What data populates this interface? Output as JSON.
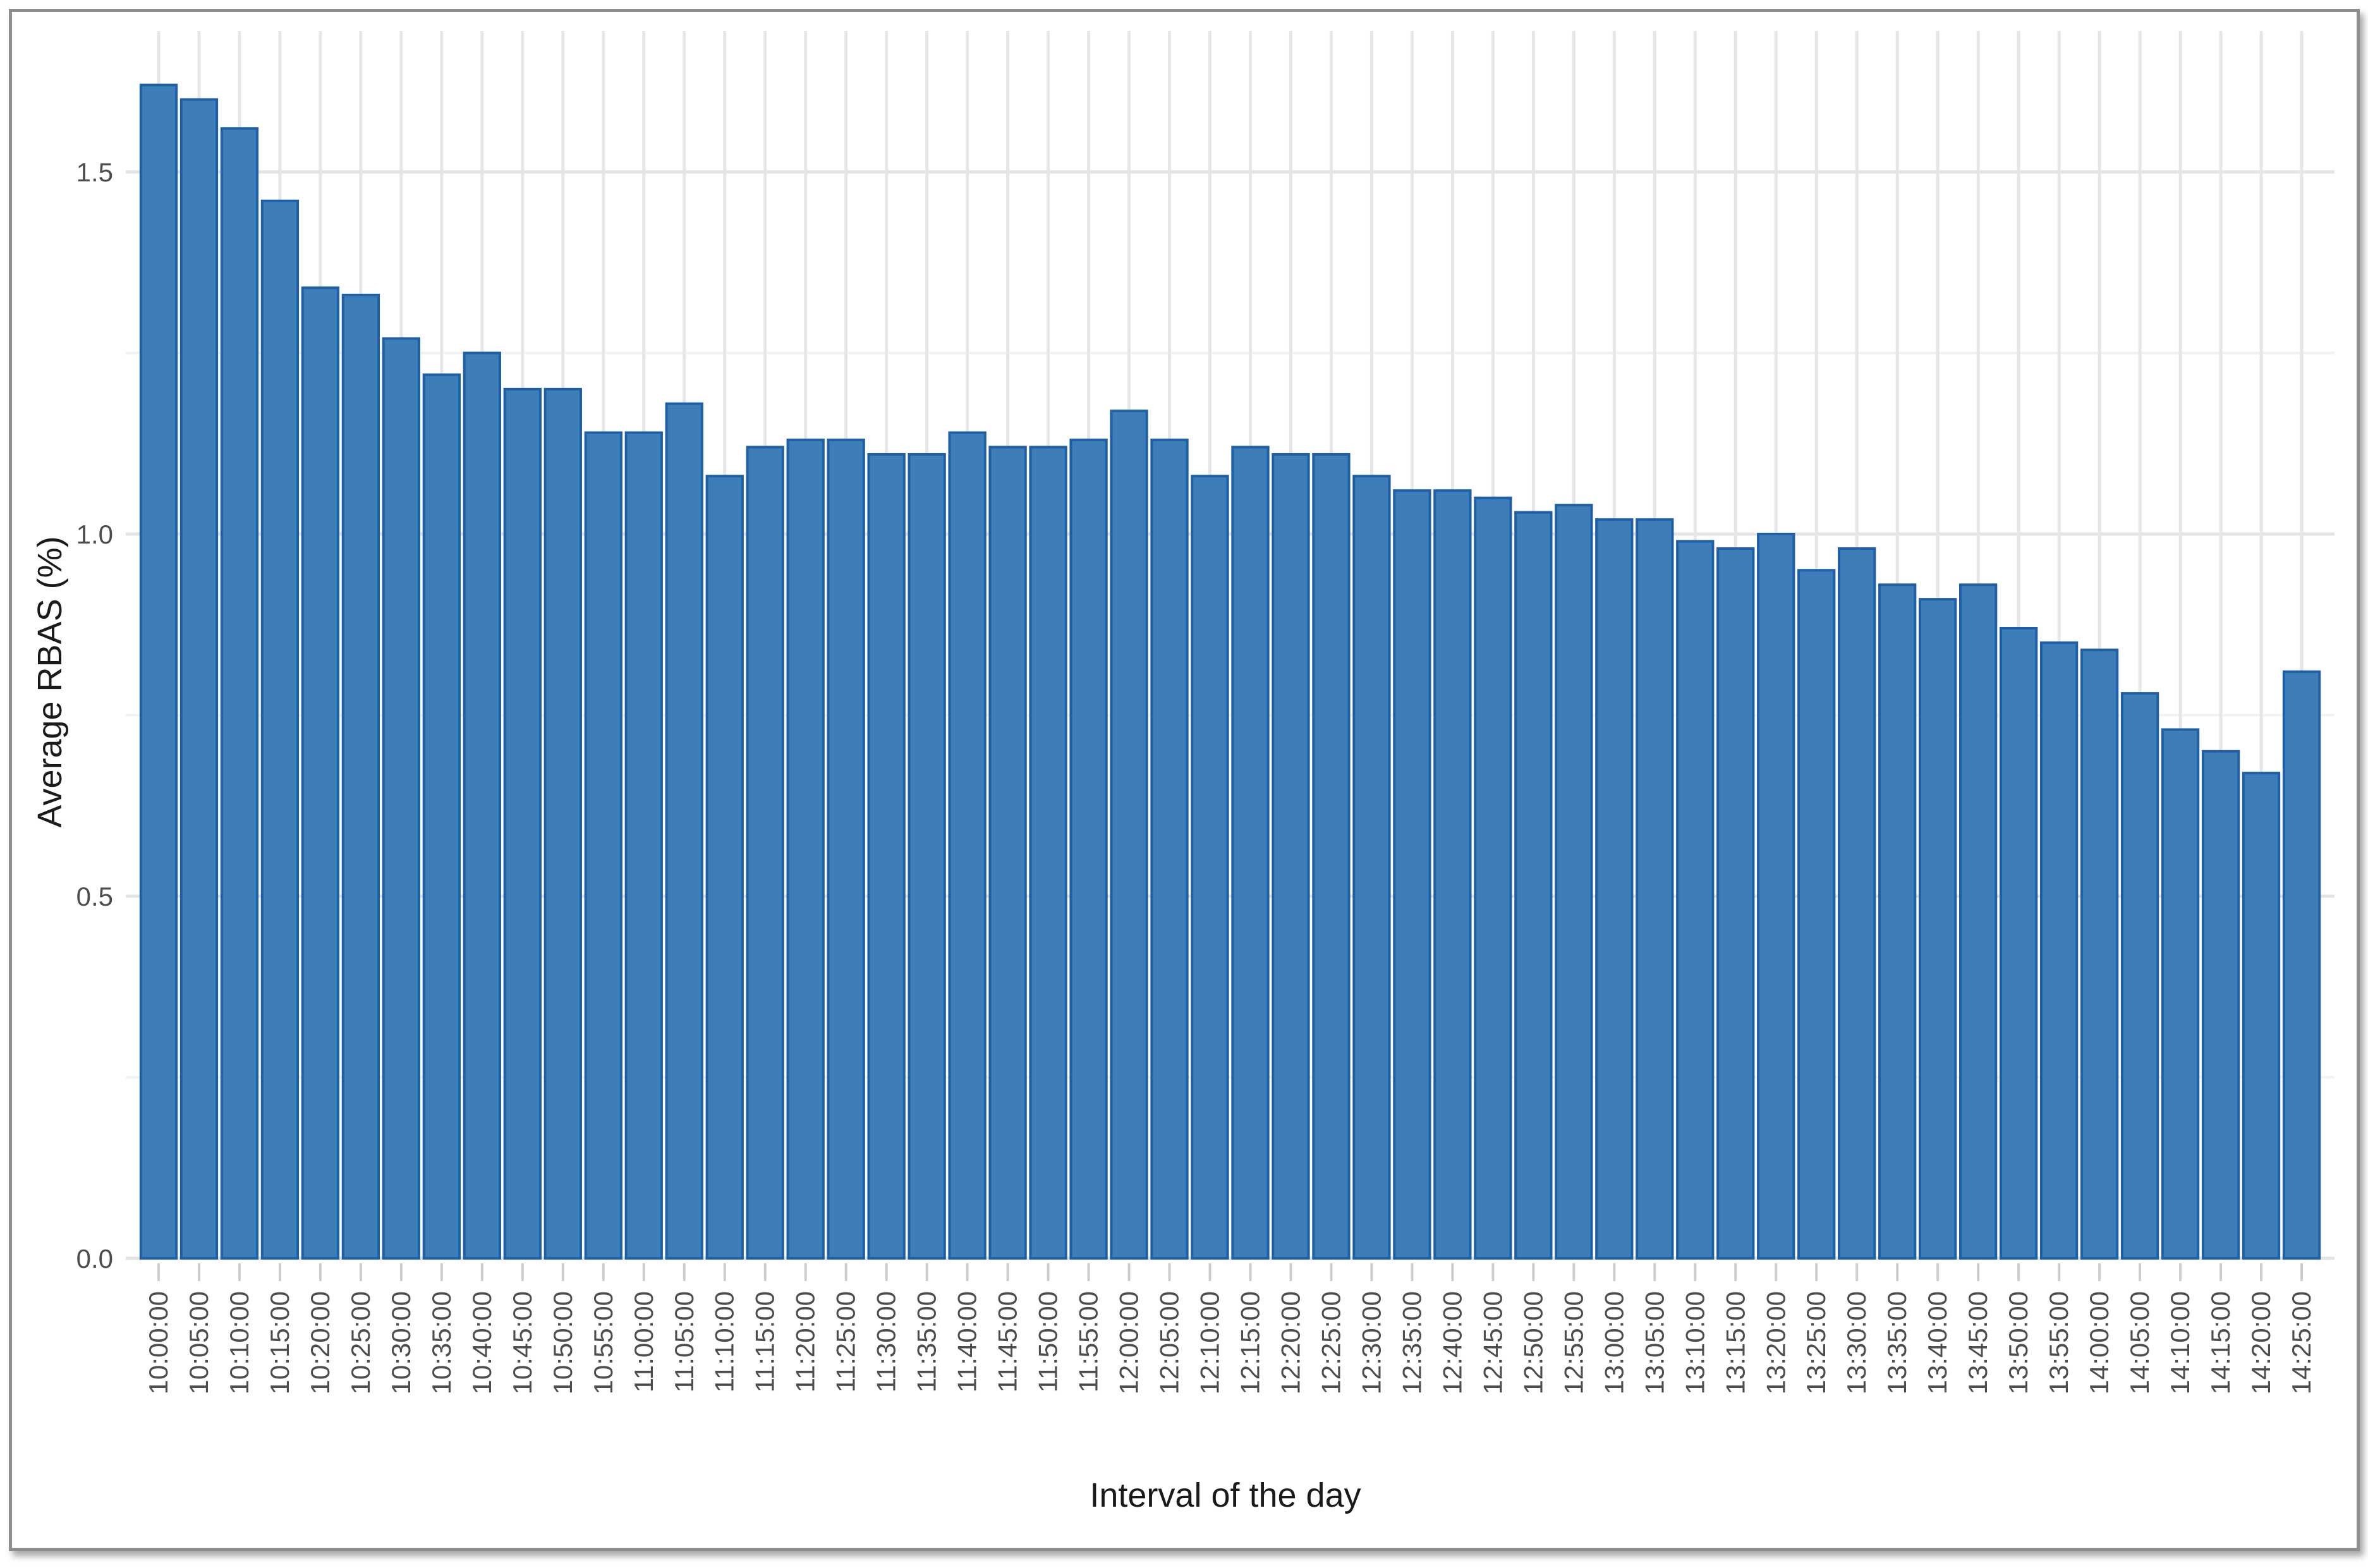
{
  "chart_data": {
    "type": "bar",
    "title": "",
    "xlabel": "Interval of the day",
    "ylabel": "Average RBAS (%)",
    "ylim": [
      0,
      1.62
    ],
    "yticks": [
      0.0,
      0.5,
      1.0,
      1.5
    ],
    "ytick_labels": [
      "0.0",
      "0.5",
      "1.0",
      "1.5"
    ],
    "grid": true,
    "legend": "none",
    "bar_color": "#3d7db8",
    "bar_edge_color": "#1f5fa8",
    "categories": [
      "10:00:00",
      "10:05:00",
      "10:10:00",
      "10:15:00",
      "10:20:00",
      "10:25:00",
      "10:30:00",
      "10:35:00",
      "10:40:00",
      "10:45:00",
      "10:50:00",
      "10:55:00",
      "11:00:00",
      "11:05:00",
      "11:10:00",
      "11:15:00",
      "11:20:00",
      "11:25:00",
      "11:30:00",
      "11:35:00",
      "11:40:00",
      "11:45:00",
      "11:50:00",
      "11:55:00",
      "12:00:00",
      "12:05:00",
      "12:10:00",
      "12:15:00",
      "12:20:00",
      "12:25:00",
      "12:30:00",
      "12:35:00",
      "12:40:00",
      "12:45:00",
      "12:50:00",
      "12:55:00",
      "13:00:00",
      "13:05:00",
      "13:10:00",
      "13:15:00",
      "13:20:00",
      "13:25:00",
      "13:30:00",
      "13:35:00",
      "13:40:00",
      "13:45:00",
      "13:50:00",
      "13:55:00",
      "14:00:00",
      "14:05:00",
      "14:10:00",
      "14:15:00",
      "14:20:00",
      "14:25:00"
    ],
    "values": [
      1.62,
      1.6,
      1.56,
      1.46,
      1.34,
      1.33,
      1.27,
      1.22,
      1.25,
      1.2,
      1.2,
      1.14,
      1.14,
      1.18,
      1.08,
      1.12,
      1.13,
      1.13,
      1.11,
      1.11,
      1.14,
      1.12,
      1.12,
      1.13,
      1.17,
      1.13,
      1.08,
      1.12,
      1.11,
      1.11,
      1.08,
      1.06,
      1.06,
      1.05,
      1.03,
      1.04,
      1.02,
      1.02,
      0.99,
      0.98,
      1.0,
      0.95,
      0.98,
      0.93,
      0.91,
      0.93,
      0.87,
      0.85,
      0.84,
      0.78,
      0.73,
      0.7,
      0.67,
      0.81
    ]
  }
}
